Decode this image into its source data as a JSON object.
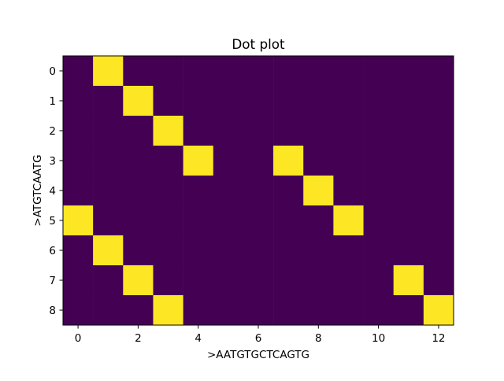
{
  "chart_data": {
    "type": "heatmap",
    "title": "Dot plot",
    "xlabel": ">AATGTGCTCAGTG",
    "ylabel": ">ATGTCAATG",
    "x_sequence": "AATGTGCTCAGTG",
    "y_sequence": "ATGTCAATG",
    "x_ticks": [
      0,
      2,
      4,
      6,
      8,
      10,
      12
    ],
    "y_ticks": [
      0,
      1,
      2,
      3,
      4,
      5,
      6,
      7,
      8
    ],
    "xlim": [
      -0.5,
      12.5
    ],
    "ylim": [
      8.5,
      -0.5
    ],
    "grid": false,
    "colors": {
      "low": "#440154",
      "high": "#fde725"
    },
    "matrix": [
      [
        0,
        1,
        0,
        0,
        0,
        0,
        0,
        0,
        0,
        0,
        0,
        0,
        0
      ],
      [
        0,
        0,
        1,
        0,
        0,
        0,
        0,
        0,
        0,
        0,
        0,
        0,
        0
      ],
      [
        0,
        0,
        0,
        1,
        0,
        0,
        0,
        0,
        0,
        0,
        0,
        0,
        0
      ],
      [
        0,
        0,
        0,
        0,
        1,
        0,
        0,
        1,
        0,
        0,
        0,
        0,
        0
      ],
      [
        0,
        0,
        0,
        0,
        0,
        0,
        0,
        0,
        1,
        0,
        0,
        0,
        0
      ],
      [
        1,
        0,
        0,
        0,
        0,
        0,
        0,
        0,
        0,
        1,
        0,
        0,
        0
      ],
      [
        0,
        1,
        0,
        0,
        0,
        0,
        0,
        0,
        0,
        0,
        0,
        0,
        0
      ],
      [
        0,
        0,
        1,
        0,
        0,
        0,
        0,
        0,
        0,
        0,
        0,
        1,
        0
      ],
      [
        0,
        0,
        0,
        1,
        0,
        0,
        0,
        0,
        0,
        0,
        0,
        0,
        1
      ]
    ]
  }
}
